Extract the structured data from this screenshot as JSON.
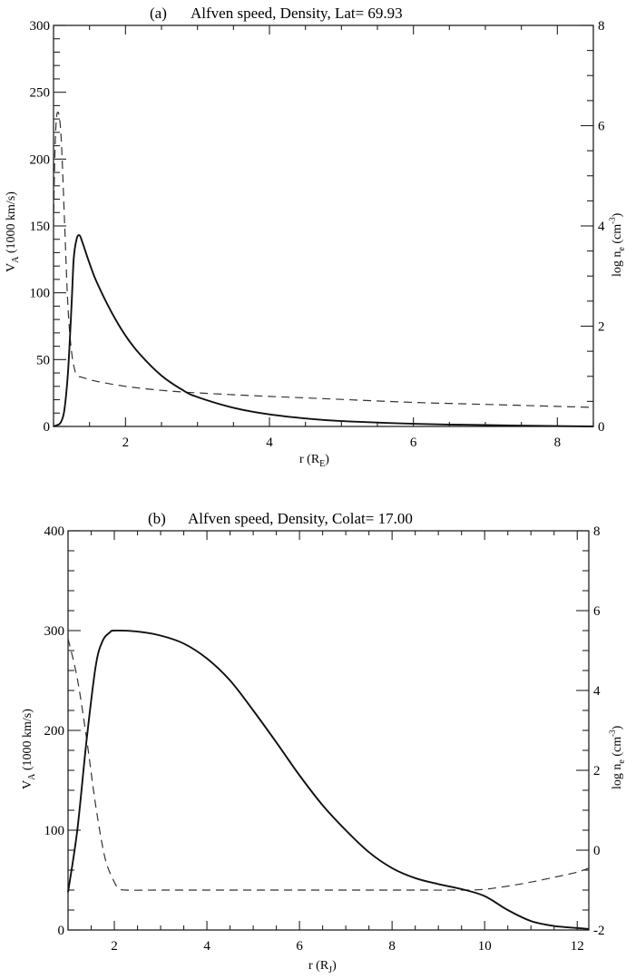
{
  "chart_data": [
    {
      "type": "line",
      "panel_label": "(a)",
      "title": "Alfven speed, Density, Lat= 69.93",
      "xlabel": "r (R_E)",
      "xlabel_main": "r (R",
      "xlabel_sub": "E",
      "ylabel": "V_A (1000 km/s)",
      "ylabel_right": "log n_e (cm^-3)",
      "xlim": [
        1.0,
        8.5
      ],
      "ylim": [
        0,
        300
      ],
      "ylim_right": [
        0,
        8
      ],
      "xticks": [
        2,
        4,
        6,
        8
      ],
      "yticks": [
        0,
        50,
        100,
        150,
        200,
        250,
        300
      ],
      "yticks_right": [
        0,
        2,
        4,
        6,
        8
      ],
      "grid": false,
      "legend": null,
      "series": [
        {
          "name": "Alfven speed V_A",
          "style": "solid",
          "axis": "left",
          "x": [
            1.0,
            1.05,
            1.1,
            1.15,
            1.2,
            1.25,
            1.28,
            1.32,
            1.36,
            1.4,
            1.5,
            1.6,
            1.8,
            2.0,
            2.2,
            2.5,
            2.8,
            3.0,
            3.5,
            4.0,
            4.5,
            5.0,
            6.0,
            7.0,
            8.0,
            8.5
          ],
          "y": [
            0,
            1,
            3,
            12,
            40,
            90,
            125,
            140,
            143,
            138,
            122,
            108,
            86,
            68,
            54,
            38,
            27,
            22,
            14,
            9,
            6,
            4,
            2,
            1,
            0.3,
            0
          ]
        },
        {
          "name": "Density log n_e",
          "style": "dashed",
          "axis": "right",
          "x": [
            1.0,
            1.02,
            1.05,
            1.1,
            1.15,
            1.2,
            1.25,
            1.3,
            1.35,
            1.4,
            1.6,
            2.0,
            2.5,
            3.0,
            4.0,
            5.0,
            6.0,
            7.0,
            8.0,
            8.5
          ],
          "y": [
            4.0,
            5.5,
            6.25,
            5.9,
            4.2,
            2.4,
            1.5,
            1.1,
            1.0,
            0.98,
            0.9,
            0.8,
            0.72,
            0.67,
            0.6,
            0.54,
            0.48,
            0.44,
            0.4,
            0.38
          ]
        }
      ]
    },
    {
      "type": "line",
      "panel_label": "(b)",
      "title": "Alfven speed, Density, Colat= 17.00",
      "xlabel": "r (R_J)",
      "xlabel_main": "r (R",
      "xlabel_sub": "J",
      "ylabel": "V_A (1000 km/s)",
      "ylabel_right": "log n_e (cm^-3)",
      "xlim": [
        1.0,
        12.25
      ],
      "ylim": [
        0,
        400
      ],
      "ylim_right": [
        -2,
        8
      ],
      "xticks": [
        2,
        4,
        6,
        8,
        10,
        12
      ],
      "yticks": [
        0,
        100,
        200,
        300,
        400
      ],
      "yticks_right": [
        -2,
        0,
        2,
        4,
        6,
        8
      ],
      "grid": false,
      "legend": null,
      "series": [
        {
          "name": "Alfven speed V_A",
          "style": "solid",
          "axis": "left",
          "x": [
            1.0,
            1.2,
            1.4,
            1.6,
            1.75,
            1.9,
            2.0,
            2.5,
            3.0,
            3.5,
            4.0,
            4.5,
            5.0,
            5.5,
            6.0,
            6.5,
            7.0,
            7.5,
            8.0,
            8.5,
            9.0,
            9.5,
            10.0,
            10.5,
            11.0,
            11.5,
            12.0,
            12.25
          ],
          "y": [
            38,
            100,
            190,
            265,
            290,
            298,
            300,
            299,
            295,
            287,
            272,
            250,
            220,
            188,
            155,
            125,
            100,
            78,
            62,
            52,
            46,
            41,
            34,
            20,
            9,
            4,
            2,
            1
          ]
        },
        {
          "name": "Density log n_e",
          "style": "dashed",
          "axis": "right",
          "x": [
            1.0,
            1.2,
            1.4,
            1.6,
            1.8,
            2.0,
            2.1,
            2.25,
            3.0,
            4.0,
            6.0,
            8.0,
            9.5,
            10.0,
            10.5,
            11.0,
            11.5,
            12.0,
            12.25
          ],
          "y": [
            5.3,
            4.3,
            2.8,
            1.1,
            -0.2,
            -0.8,
            -0.95,
            -1.0,
            -1.0,
            -1.0,
            -1.0,
            -1.0,
            -1.0,
            -0.98,
            -0.9,
            -0.8,
            -0.68,
            -0.55,
            -0.45
          ]
        }
      ]
    }
  ]
}
